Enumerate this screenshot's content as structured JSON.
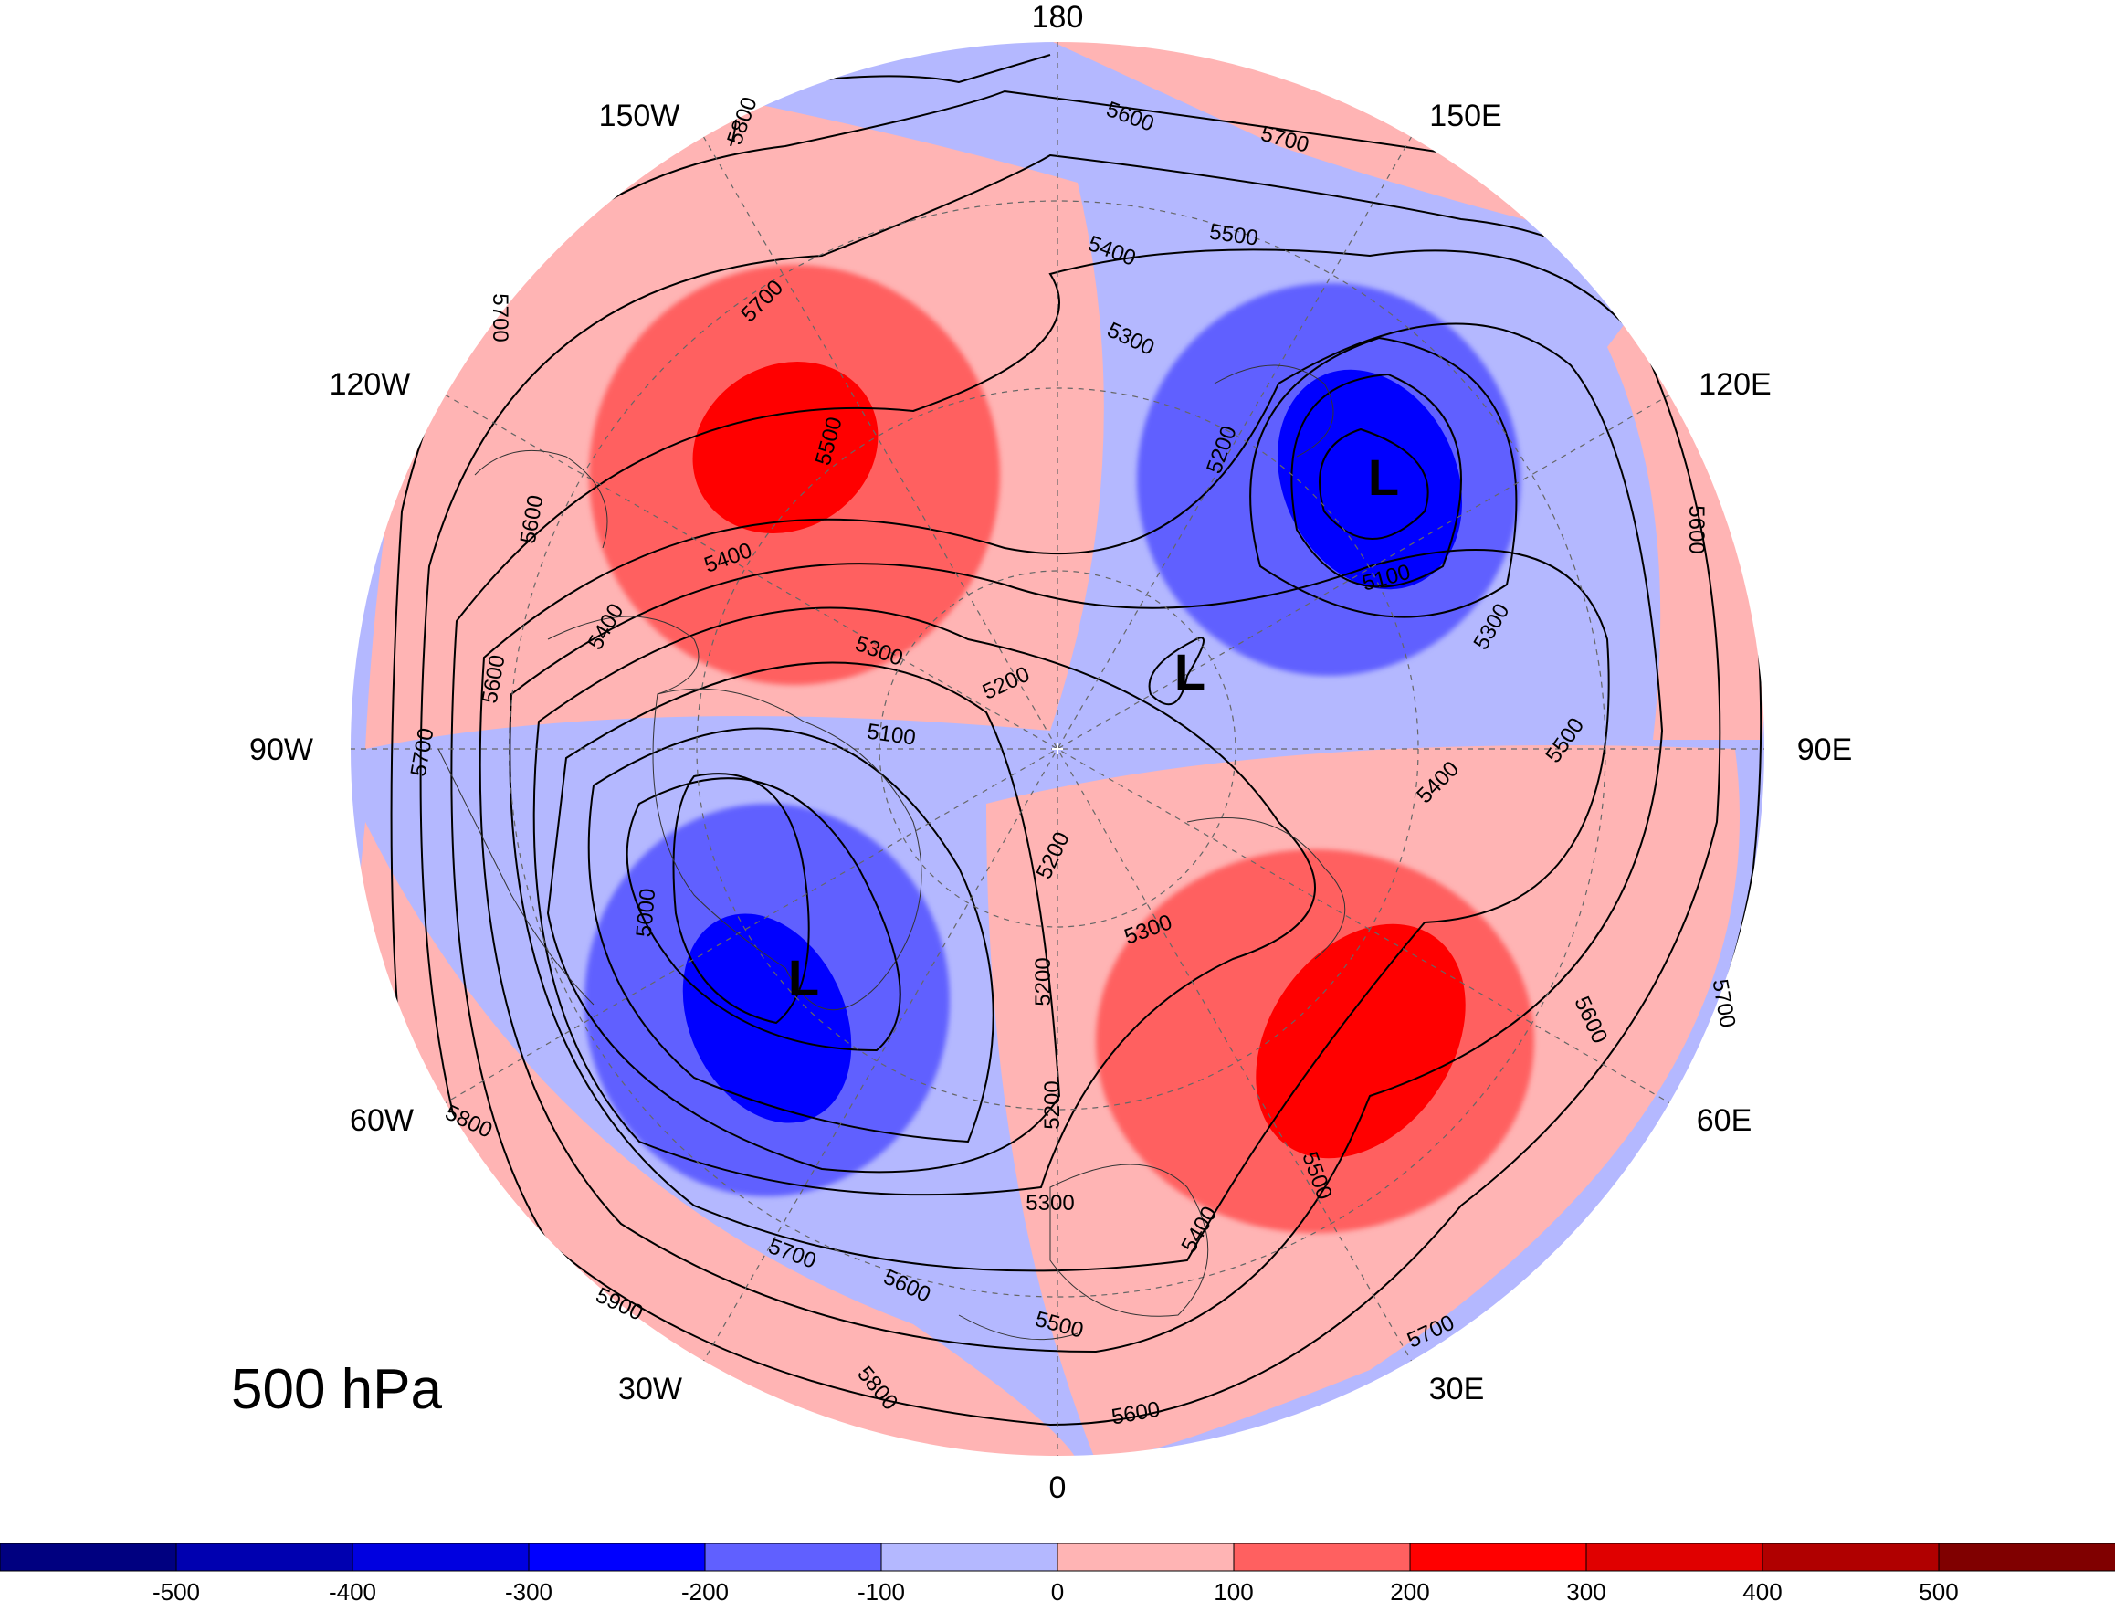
{
  "title": "500 hPa",
  "longitude_labels": [
    "180",
    "150E",
    "120E",
    "90E",
    "60E",
    "30E",
    "0",
    "30W",
    "60W",
    "90W",
    "120W",
    "150W"
  ],
  "anomaly_colorbar": {
    "tick_labels": [
      "-500",
      "-400",
      "-300",
      "-200",
      "-100",
      "0",
      "100",
      "200",
      "300",
      "400",
      "500"
    ],
    "colors": [
      "#000080",
      "#0000b0",
      "#0000e0",
      "#0000ff",
      "#6060ff",
      "#b4b8ff",
      "#ffb4b4",
      "#ff6060",
      "#ff0000",
      "#e00000",
      "#b00000",
      "#800000"
    ]
  },
  "low_markers": [
    {
      "text": "L",
      "location": "Siberia"
    },
    {
      "text": "L",
      "location": "Arctic / East Siberian Sea"
    },
    {
      "text": "L",
      "location": "Greenland / Labrador"
    }
  ],
  "contour_labels": [
    "5800",
    "5700",
    "5600",
    "5500",
    "5400",
    "5300",
    "5200",
    "5100",
    "5000",
    "5900"
  ],
  "contour_interval_m": 100
}
